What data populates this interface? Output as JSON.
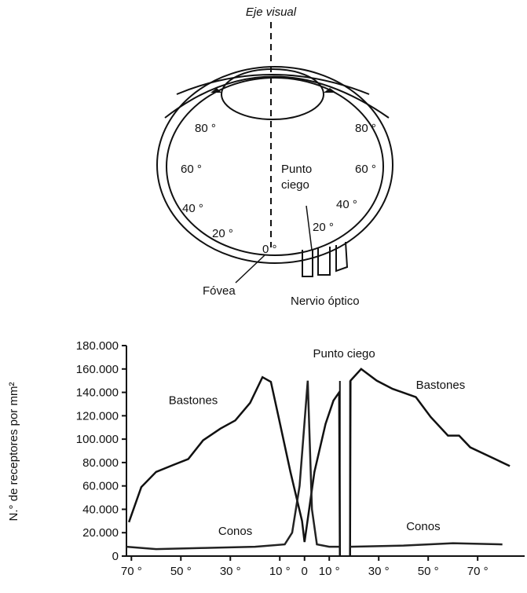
{
  "diagram": {
    "visual_axis": "Eje visual",
    "left_degrees": [
      "80 °",
      "60 °",
      "40 °",
      "20 °"
    ],
    "center_degree": "0 °",
    "right_degrees": [
      "80 °",
      "60 °",
      "40 °",
      "20 °"
    ],
    "blind_spot": [
      "Punto",
      "ciego"
    ],
    "fovea": "Fóvea",
    "optic_nerve": "Nervio óptico"
  },
  "chart_data": {
    "type": "line",
    "ylabel": "N.° de receptores por mm²",
    "xlim": [
      -72,
      89
    ],
    "ylim": [
      0,
      180000
    ],
    "xticks": [
      {
        "value": -70,
        "label": "70 °"
      },
      {
        "value": -50,
        "label": "50 °"
      },
      {
        "value": -30,
        "label": "30 °"
      },
      {
        "value": -10,
        "label": "10 °"
      },
      0,
      {
        "value": 10,
        "label": "10 °"
      },
      {
        "value": 30,
        "label": "30 °"
      },
      {
        "value": 50,
        "label": "50 °"
      },
      {
        "value": 70,
        "label": "70 °"
      }
    ],
    "yticks": [
      0,
      {
        "value": 20000,
        "label": "20.000"
      },
      {
        "value": 40000,
        "label": "40.000"
      },
      {
        "value": 60000,
        "label": "60.000"
      },
      {
        "value": 80000,
        "label": "80.000"
      },
      {
        "value": 100000,
        "label": "100.000"
      },
      {
        "value": 120000,
        "label": "120.000"
      },
      {
        "value": 140000,
        "label": "140.000"
      },
      {
        "value": 160000,
        "label": "160.000"
      },
      {
        "value": 180000,
        "label": "180.000"
      }
    ],
    "blind_spot": [
      14.3,
      18.4
    ],
    "series": [
      {
        "name": "Bastones",
        "color": "#111111",
        "x": [
          -71,
          -66,
          -60,
          -53,
          -47,
          -41,
          -34,
          -28,
          -22,
          -17,
          -13.6,
          -10.5,
          -5.7,
          -1,
          0,
          4,
          8.5,
          11.7,
          14,
          14.3,
          null,
          18.4,
          18.6,
          22.9,
          29.2,
          35.6,
          45,
          51,
          58,
          62.5,
          67,
          77,
          83
        ],
        "values": [
          29000,
          59000,
          72000,
          78000,
          83000,
          99000,
          109000,
          116000,
          131000,
          153000,
          149000,
          119000,
          72000,
          30000,
          12000,
          72000,
          113000,
          133000,
          140000,
          0,
          null,
          0,
          150000,
          160000,
          150000,
          143000,
          136000,
          119000,
          103000,
          103000,
          93000,
          83000,
          77000
        ]
      },
      {
        "name": "Conos",
        "color": "#222222",
        "x": [
          -72,
          -60,
          -40,
          -20,
          -8,
          -5,
          -2,
          1.3,
          3,
          5,
          10,
          14.3,
          null,
          18.4,
          40,
          60,
          80
        ],
        "values": [
          8000,
          6000,
          7000,
          8000,
          10000,
          20000,
          60000,
          150000,
          40000,
          10000,
          8000,
          8000,
          null,
          8000,
          9000,
          11000,
          10000
        ]
      }
    ],
    "annotations": [
      {
        "text": "Bastones",
        "x": -45,
        "y": 130000
      },
      {
        "text": "Bastones",
        "x": 55,
        "y": 143000
      },
      {
        "text": "Conos",
        "x": -28,
        "y": 18000
      },
      {
        "text": "Conos",
        "x": 48,
        "y": 22000
      },
      {
        "text": "Punto ciego",
        "x": 16,
        "y": 170000
      }
    ]
  }
}
